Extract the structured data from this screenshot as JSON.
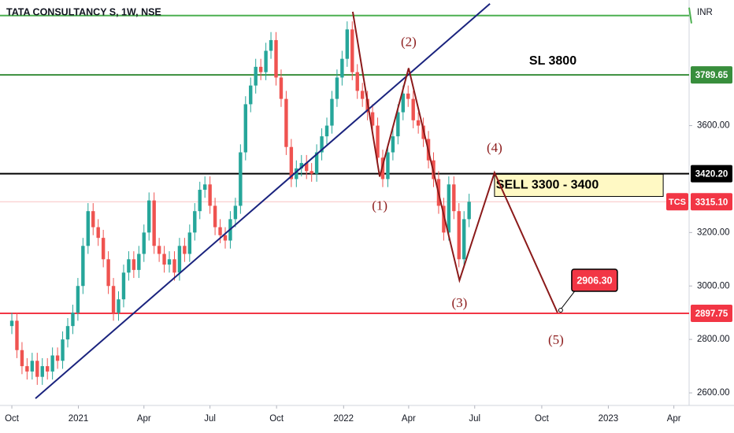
{
  "chart_data": {
    "type": "candlestick",
    "title": "TATA CONSULTANCY S, 1W, NSE",
    "currency": "INR",
    "up_color": "#26a69a",
    "down_color": "#ef5350",
    "x": [
      0,
      1,
      2,
      3,
      4,
      5,
      6,
      7,
      8,
      9,
      10,
      11,
      12,
      13,
      14,
      15,
      16,
      17,
      18,
      19,
      20,
      21,
      22,
      23,
      24,
      25,
      26,
      27,
      28,
      29,
      30,
      31,
      32,
      33,
      34,
      35,
      36,
      37,
      38,
      39,
      40,
      41,
      42,
      43,
      44,
      45,
      46,
      47,
      48,
      49,
      50,
      51,
      52,
      53,
      54,
      55,
      56,
      57,
      58,
      59,
      60,
      61,
      62,
      63,
      64,
      65,
      66,
      67,
      68,
      69,
      70,
      71,
      72,
      73,
      74,
      75,
      76,
      77,
      78,
      79,
      80,
      81,
      82,
      83,
      84,
      85,
      86,
      87,
      88,
      89,
      90
    ],
    "open": [
      2850,
      2870,
      2760,
      2700,
      2680,
      2720,
      2660,
      2700,
      2680,
      2740,
      2720,
      2800,
      2850,
      2900,
      3000,
      3150,
      3280,
      3220,
      3180,
      3100,
      3000,
      2900,
      2950,
      3050,
      3100,
      3060,
      3120,
      3200,
      3320,
      3150,
      3120,
      3080,
      3100,
      3050,
      3150,
      3120,
      3200,
      3280,
      3360,
      3380,
      3300,
      3220,
      3190,
      3170,
      3250,
      3300,
      3500,
      3680,
      3750,
      3820,
      3800,
      3880,
      3920,
      3780,
      3700,
      3520,
      3400,
      3440,
      3460,
      3430,
      3420,
      3500,
      3560,
      3600,
      3700,
      3780,
      3850,
      3960,
      3800,
      3730,
      3700,
      3650,
      3600,
      3480,
      3400,
      3500,
      3560,
      3650,
      3720,
      3700,
      3620,
      3600,
      3550,
      3470,
      3400,
      3300,
      3200,
      3380,
      3280,
      3100,
      3250
    ],
    "high": [
      2900,
      2900,
      2790,
      2730,
      2750,
      2750,
      2730,
      2730,
      2770,
      2770,
      2830,
      2880,
      2930,
      3030,
      3180,
      3310,
      3310,
      3250,
      3210,
      3130,
      3030,
      2980,
      3080,
      3130,
      3130,
      3150,
      3230,
      3350,
      3350,
      3180,
      3150,
      3130,
      3130,
      3180,
      3180,
      3230,
      3310,
      3390,
      3410,
      3410,
      3330,
      3250,
      3220,
      3280,
      3330,
      3530,
      3710,
      3780,
      3850,
      3850,
      3910,
      3950,
      3950,
      3810,
      3730,
      3550,
      3470,
      3490,
      3490,
      3460,
      3530,
      3590,
      3630,
      3730,
      3810,
      3880,
      3990,
      3990,
      3830,
      3760,
      3730,
      3680,
      3630,
      3510,
      3530,
      3590,
      3680,
      3750,
      3750,
      3730,
      3650,
      3630,
      3580,
      3500,
      3430,
      3330,
      3410,
      3410,
      3310,
      3280,
      3345
    ],
    "low": [
      2820,
      2730,
      2670,
      2650,
      2650,
      2630,
      2630,
      2650,
      2650,
      2690,
      2690,
      2770,
      2820,
      2870,
      2970,
      3120,
      3190,
      3150,
      3070,
      2970,
      2870,
      2870,
      2920,
      3020,
      3030,
      3030,
      3090,
      3170,
      3120,
      3090,
      3050,
      3050,
      3020,
      3020,
      3090,
      3090,
      3170,
      3250,
      3330,
      3270,
      3190,
      3160,
      3140,
      3140,
      3220,
      3270,
      3470,
      3650,
      3720,
      3770,
      3770,
      3850,
      3750,
      3670,
      3490,
      3370,
      3370,
      3410,
      3400,
      3390,
      3390,
      3470,
      3530,
      3570,
      3670,
      3750,
      3820,
      3770,
      3700,
      3670,
      3620,
      3570,
      3450,
      3370,
      3370,
      3470,
      3530,
      3620,
      3670,
      3590,
      3570,
      3520,
      3440,
      3370,
      3270,
      3170,
      3170,
      3250,
      3070,
      3070,
      3220
    ],
    "close": [
      2870,
      2760,
      2700,
      2680,
      2720,
      2660,
      2700,
      2680,
      2740,
      2720,
      2800,
      2850,
      2900,
      3000,
      3150,
      3280,
      3220,
      3180,
      3100,
      3000,
      2900,
      2950,
      3050,
      3100,
      3060,
      3120,
      3200,
      3320,
      3150,
      3120,
      3080,
      3100,
      3050,
      3150,
      3120,
      3200,
      3280,
      3360,
      3380,
      3300,
      3220,
      3190,
      3170,
      3250,
      3300,
      3500,
      3680,
      3750,
      3820,
      3800,
      3880,
      3920,
      3780,
      3700,
      3520,
      3400,
      3440,
      3460,
      3430,
      3420,
      3500,
      3560,
      3600,
      3700,
      3780,
      3850,
      3960,
      3800,
      3730,
      3700,
      3650,
      3600,
      3480,
      3400,
      3500,
      3560,
      3650,
      3720,
      3700,
      3620,
      3600,
      3550,
      3470,
      3400,
      3300,
      3200,
      3380,
      3280,
      3100,
      3250,
      3315
    ],
    "xlim": [
      -2.33,
      133.3
    ],
    "xticks": [
      {
        "value": 0,
        "label": "Oct"
      },
      {
        "value": 13.1,
        "label": "2021"
      },
      {
        "value": 26,
        "label": "Apr"
      },
      {
        "value": 39,
        "label": "Jul"
      },
      {
        "value": 52.1,
        "label": "Oct"
      },
      {
        "value": 65.3,
        "label": "2022"
      },
      {
        "value": 78.1,
        "label": "Apr"
      },
      {
        "value": 91.1,
        "label": "Jul"
      },
      {
        "value": 104.3,
        "label": "Oct"
      },
      {
        "value": 117.4,
        "label": "2023"
      },
      {
        "value": 130.3,
        "label": "Apr"
      }
    ],
    "ylim": [
      2553,
      4070
    ],
    "yticks": [
      {
        "value": 2600,
        "label": "2600.00"
      },
      {
        "value": 2800,
        "label": "2800.00"
      },
      {
        "value": 3000,
        "label": "3000.00"
      },
      {
        "value": 3200,
        "label": "3200.00"
      },
      {
        "value": 3600,
        "label": "3600.00"
      }
    ],
    "levels": [
      {
        "value": 4012,
        "color": "#4caf50"
      },
      {
        "value": 3789.65,
        "label": "3789.65",
        "color": "#388e3c"
      },
      {
        "value": 3420.2,
        "label": "3420.20",
        "color": "#000000"
      },
      {
        "value": 2897.75,
        "label": "2897.75",
        "color": "#f23645"
      }
    ],
    "last_price": {
      "symbol": "TCS",
      "value": 3315.1,
      "label": "3315.10",
      "color": "#f23645",
      "line_color": "#f9c4c4"
    },
    "trend_line": {
      "x": [
        4.65,
        94.1
      ],
      "y": [
        2579,
        4056
      ],
      "color": "#1a237e"
    },
    "wave": {
      "x": [
        67.1,
        72.4,
        78.1,
        88.1,
        95.0,
        107.4
      ],
      "y": [
        4026,
        3409,
        3815,
        3021,
        3424,
        2900
      ],
      "labels": [
        null,
        "(1)",
        "(2)",
        "(3)",
        "(4)",
        "(5)"
      ],
      "color": "#8b1a1a"
    },
    "stop_loss": {
      "value": 3800,
      "label": "SL 3800"
    },
    "sell_zone": {
      "x": [
        95.0,
        128.2
      ],
      "y": [
        3418,
        3335
      ],
      "label": "SELL 3300 - 3400",
      "color": "#fff9c4"
    },
    "target": {
      "value": 2906.3,
      "label": "2906.30",
      "color": "#f23645"
    }
  }
}
